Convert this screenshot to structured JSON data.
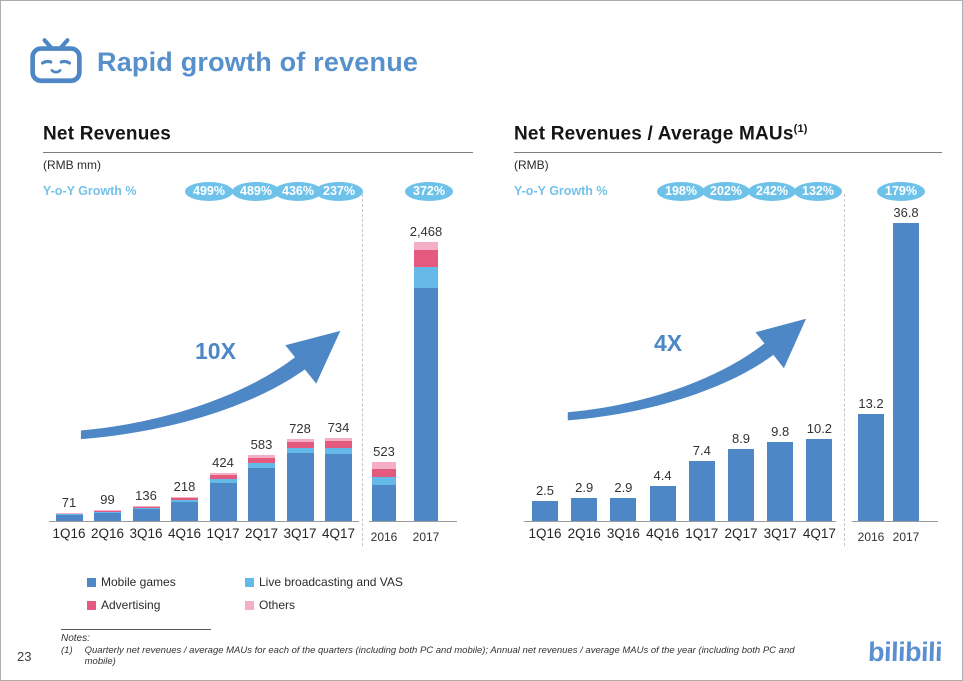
{
  "slide": {
    "header_title": "Rapid growth of revenue",
    "page_number": "23",
    "logo_text": "bilibili"
  },
  "colors": {
    "brand_blue": "#4e87c5",
    "title_blue": "#5890cc",
    "badge_blue": "#6ec2ea",
    "mobile_games": "#4e87c5",
    "live_vas": "#64b9e9",
    "advertising": "#e4597e",
    "others": "#f4afc6"
  },
  "legend": {
    "items": [
      {
        "label": "Mobile games",
        "color_key": "mobile_games"
      },
      {
        "label": "Live broadcasting and VAS",
        "color_key": "live_vas"
      },
      {
        "label": "Advertising",
        "color_key": "advertising"
      },
      {
        "label": "Others",
        "color_key": "others"
      }
    ]
  },
  "notes": {
    "label": "Notes:",
    "item_number": "(1)",
    "item_text": "Quarterly net revenues / average MAUs for each of the quarters (including both PC and mobile); Annual net revenues / average MAUs of the year (including both PC and mobile)"
  },
  "chart_data": [
    {
      "type": "bar",
      "stacked": true,
      "title": "Net Revenues",
      "title_superscript": "",
      "unit_label": "(RMB mm)",
      "growth_label": "Y-o-Y Growth %",
      "growth_badges": [
        "499%",
        "489%",
        "436%",
        "237%",
        "372%"
      ],
      "multiplier_label": "10X",
      "categories": [
        "1Q16",
        "2Q16",
        "3Q16",
        "4Q16",
        "1Q17",
        "2Q17",
        "3Q17",
        "4Q17",
        "2016",
        "2017"
      ],
      "annual_start_index": 8,
      "totals": [
        71,
        99,
        136,
        218,
        424,
        583,
        728,
        734,
        523,
        2468
      ],
      "total_labels": [
        "71",
        "99",
        "136",
        "218",
        "424",
        "583",
        "728",
        "734",
        "523",
        "2,468"
      ],
      "series": [
        {
          "name": "Mobile games",
          "color_key": "mobile_games",
          "values": [
            55,
            76,
            105,
            170,
            340,
            470,
            600,
            595,
            320,
            2060
          ]
        },
        {
          "name": "Live broadcasting and VAS",
          "color_key": "live_vas",
          "values": [
            6,
            9,
            12,
            20,
            34,
            45,
            52,
            57,
            75,
            190
          ]
        },
        {
          "name": "Advertising",
          "color_key": "advertising",
          "values": [
            7,
            10,
            13,
            20,
            34,
            46,
            50,
            55,
            72,
            150
          ]
        },
        {
          "name": "Others",
          "color_key": "others",
          "values": [
            3,
            4,
            6,
            8,
            16,
            22,
            26,
            27,
            56,
            68
          ]
        }
      ],
      "ylim": [
        0,
        2468
      ],
      "legend_position": "bottom",
      "grid": false
    },
    {
      "type": "bar",
      "stacked": false,
      "title": "Net Revenues / Average MAUs",
      "title_superscript": "(1)",
      "unit_label": "(RMB)",
      "growth_label": "Y-o-Y Growth %",
      "growth_badges": [
        "198%",
        "202%",
        "242%",
        "132%",
        "179%"
      ],
      "multiplier_label": "4X",
      "categories": [
        "1Q16",
        "2Q16",
        "3Q16",
        "4Q16",
        "1Q17",
        "2Q17",
        "3Q17",
        "4Q17",
        "2016",
        "2017"
      ],
      "annual_start_index": 8,
      "values": [
        2.5,
        2.9,
        2.9,
        4.4,
        7.4,
        8.9,
        9.8,
        10.2,
        13.2,
        36.8
      ],
      "value_labels": [
        "2.5",
        "2.9",
        "2.9",
        "4.4",
        "7.4",
        "8.9",
        "9.8",
        "10.2",
        "13.2",
        "36.8"
      ],
      "ylim": [
        0,
        36.8
      ],
      "grid": false
    }
  ]
}
